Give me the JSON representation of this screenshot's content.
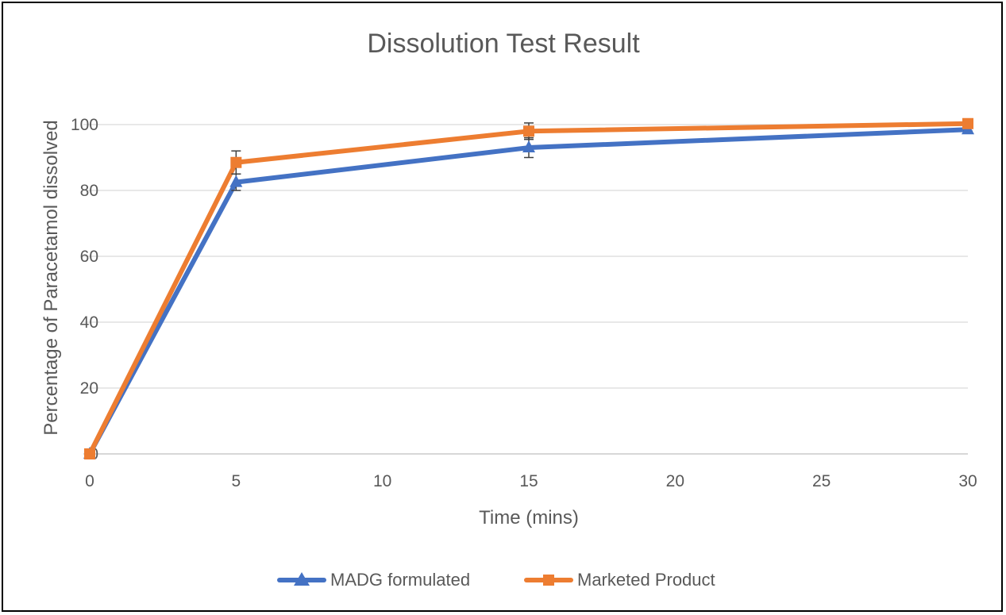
{
  "chart_data": {
    "type": "line",
    "title": "Dissolution Test Result",
    "xlabel": "Time (mins)",
    "ylabel": "Percentage of Paracetamol dissolved",
    "xlim": [
      0,
      30
    ],
    "ylim": [
      0,
      100
    ],
    "x_ticks": [
      "0",
      "5",
      "10",
      "15",
      "20",
      "25",
      "30"
    ],
    "y_ticks": [
      "0",
      "20",
      "40",
      "60",
      "80",
      "100"
    ],
    "grid": true,
    "legend_position": "bottom",
    "series": [
      {
        "name": "MADG formulated",
        "color": "#4472c4",
        "marker": "triangle",
        "x": [
          0,
          5,
          15,
          30
        ],
        "y": [
          0,
          82.5,
          93,
          98.5
        ],
        "error": [
          0,
          2.5,
          3,
          0.5
        ]
      },
      {
        "name": "Marketed Product",
        "color": "#ed7d31",
        "marker": "square",
        "x": [
          0,
          5,
          15,
          30
        ],
        "y": [
          0,
          88.5,
          98,
          100.3
        ],
        "error": [
          0,
          3.5,
          2.5,
          0.5
        ]
      }
    ]
  }
}
